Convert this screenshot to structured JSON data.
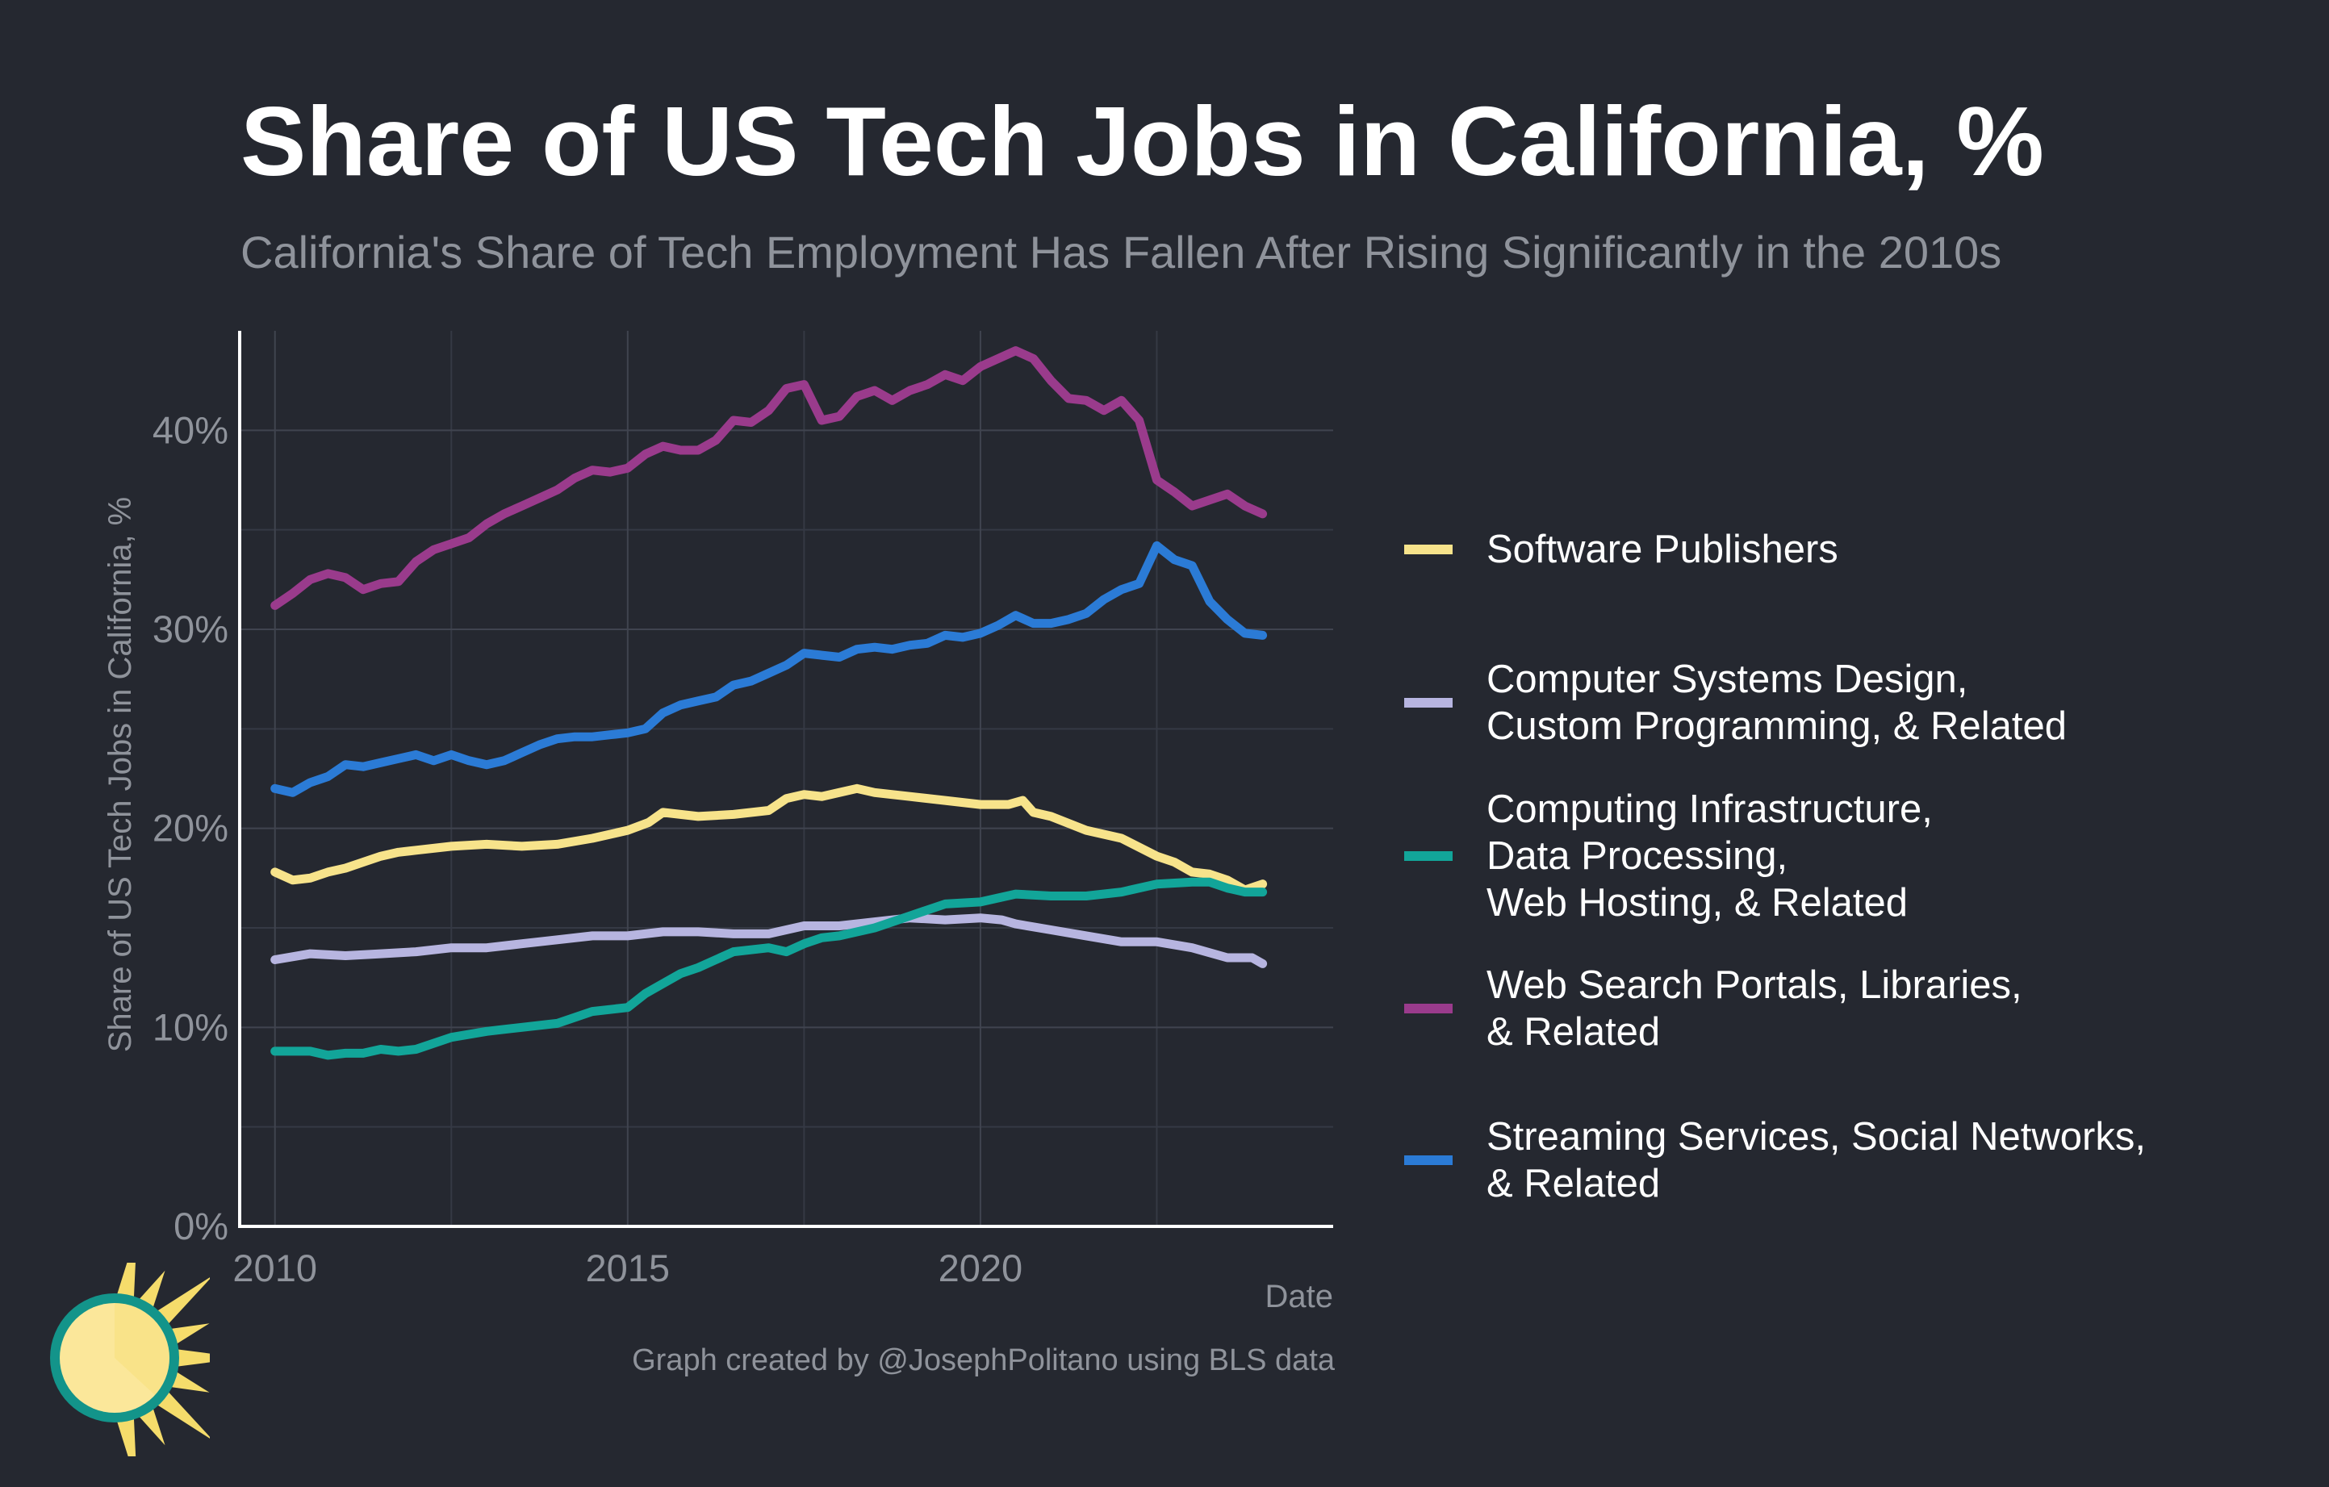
{
  "header": {
    "title": "Share of US Tech Jobs in California, %",
    "subtitle": "California's Share of Tech Employment Has Fallen After Rising Significantly in the 2010s"
  },
  "footer": {
    "caption": "Graph created by @JosephPolitano using BLS data"
  },
  "chart_data": {
    "type": "line",
    "title": "Share of US Tech Jobs in California, %",
    "subtitle": "California's Share of Tech Employment Has Fallen After Rising Significantly in the 2010s",
    "xlabel": "Date",
    "ylabel": "Share of US Tech Jobs in California, %",
    "xlim": [
      2009.5,
      2025.0
    ],
    "ylim": [
      0,
      45
    ],
    "x_ticks": [
      2010,
      2015,
      2020
    ],
    "x_tick_labels": [
      "2010",
      "2015",
      "2020"
    ],
    "y_ticks": [
      0,
      10,
      20,
      30,
      40
    ],
    "y_tick_labels": [
      "0%",
      "10%",
      "20%",
      "30%",
      "40%"
    ],
    "grid": true,
    "legend_position": "right",
    "series": [
      {
        "name": "Software Publishers",
        "color": "#f7e38b",
        "x": [
          2010.0,
          2010.25,
          2010.5,
          2010.75,
          2011.0,
          2011.25,
          2011.5,
          2011.75,
          2012.0,
          2012.5,
          2013.0,
          2013.5,
          2014.0,
          2014.5,
          2015.0,
          2015.3,
          2015.5,
          2016.0,
          2016.5,
          2017.0,
          2017.25,
          2017.5,
          2017.75,
          2018.0,
          2018.25,
          2018.5,
          2019.0,
          2019.5,
          2020.0,
          2020.4,
          2020.6,
          2020.75,
          2021.0,
          2021.5,
          2022.0,
          2022.5,
          2022.75,
          2023.0,
          2023.25,
          2023.5,
          2023.75,
          2024.0
        ],
        "y": [
          17.8,
          17.4,
          17.5,
          17.8,
          18.0,
          18.3,
          18.6,
          18.8,
          18.9,
          19.1,
          19.2,
          19.1,
          19.2,
          19.5,
          19.9,
          20.3,
          20.8,
          20.6,
          20.7,
          20.9,
          21.5,
          21.7,
          21.6,
          21.8,
          22.0,
          21.8,
          21.6,
          21.4,
          21.2,
          21.2,
          21.4,
          20.8,
          20.6,
          19.9,
          19.5,
          18.6,
          18.3,
          17.8,
          17.7,
          17.4,
          16.9,
          17.2
        ]
      },
      {
        "name": "Computer Systems Design, Custom Programming, & Related",
        "color": "#b7b5e0",
        "x": [
          2010.0,
          2010.5,
          2011.0,
          2011.5,
          2012.0,
          2012.5,
          2013.0,
          2013.5,
          2014.0,
          2014.5,
          2015.0,
          2015.5,
          2016.0,
          2016.5,
          2017.0,
          2017.5,
          2018.0,
          2018.5,
          2019.0,
          2019.5,
          2020.0,
          2020.3,
          2020.5,
          2021.0,
          2021.5,
          2022.0,
          2022.5,
          2023.0,
          2023.5,
          2023.85,
          2024.0
        ],
        "y": [
          13.4,
          13.7,
          13.6,
          13.7,
          13.8,
          14.0,
          14.0,
          14.2,
          14.4,
          14.6,
          14.6,
          14.8,
          14.8,
          14.7,
          14.7,
          15.1,
          15.1,
          15.3,
          15.5,
          15.4,
          15.5,
          15.4,
          15.2,
          14.9,
          14.6,
          14.3,
          14.3,
          14.0,
          13.5,
          13.5,
          13.2
        ]
      },
      {
        "name": "Computing Infrastructure, Data Processing, Web Hosting, & Related",
        "color": "#12a599",
        "x": [
          2010.0,
          2010.25,
          2010.5,
          2010.75,
          2011.0,
          2011.25,
          2011.5,
          2011.75,
          2012.0,
          2012.5,
          2013.0,
          2013.5,
          2014.0,
          2014.5,
          2015.0,
          2015.25,
          2015.5,
          2015.75,
          2016.0,
          2016.5,
          2017.0,
          2017.25,
          2017.5,
          2017.75,
          2018.0,
          2018.5,
          2019.0,
          2019.5,
          2020.0,
          2020.5,
          2021.0,
          2021.5,
          2022.0,
          2022.5,
          2023.0,
          2023.25,
          2023.5,
          2023.75,
          2024.0
        ],
        "y": [
          8.8,
          8.8,
          8.8,
          8.6,
          8.7,
          8.7,
          8.9,
          8.8,
          8.9,
          9.5,
          9.8,
          10.0,
          10.2,
          10.8,
          11.0,
          11.7,
          12.2,
          12.7,
          13.0,
          13.8,
          14.0,
          13.8,
          14.2,
          14.5,
          14.6,
          15.0,
          15.6,
          16.2,
          16.3,
          16.7,
          16.6,
          16.6,
          16.8,
          17.2,
          17.3,
          17.3,
          17.0,
          16.8,
          16.8
        ]
      },
      {
        "name": "Web Search Portals, Libraries, & Related",
        "color": "#9a3b8c",
        "x": [
          2010.0,
          2010.25,
          2010.5,
          2010.75,
          2011.0,
          2011.25,
          2011.5,
          2011.75,
          2012.0,
          2012.25,
          2012.5,
          2012.75,
          2013.0,
          2013.25,
          2013.5,
          2013.75,
          2014.0,
          2014.25,
          2014.5,
          2014.75,
          2015.0,
          2015.25,
          2015.5,
          2015.75,
          2016.0,
          2016.25,
          2016.5,
          2016.75,
          2017.0,
          2017.25,
          2017.5,
          2017.75,
          2018.0,
          2018.25,
          2018.5,
          2018.75,
          2019.0,
          2019.25,
          2019.5,
          2019.75,
          2020.0,
          2020.25,
          2020.5,
          2020.75,
          2021.0,
          2021.25,
          2021.5,
          2021.75,
          2022.0,
          2022.25,
          2022.5,
          2022.75,
          2023.0,
          2023.25,
          2023.5,
          2023.75,
          2024.0
        ],
        "y": [
          31.2,
          31.8,
          32.5,
          32.8,
          32.6,
          32.0,
          32.3,
          32.4,
          33.4,
          34.0,
          34.3,
          34.6,
          35.3,
          35.8,
          36.2,
          36.6,
          37.0,
          37.6,
          38.0,
          37.9,
          38.1,
          38.8,
          39.2,
          39.0,
          39.0,
          39.5,
          40.5,
          40.4,
          41.0,
          42.1,
          42.3,
          40.5,
          40.7,
          41.7,
          42.0,
          41.5,
          42.0,
          42.3,
          42.8,
          42.5,
          43.2,
          43.6,
          44.0,
          43.6,
          42.5,
          41.6,
          41.5,
          41.0,
          41.5,
          40.5,
          37.5,
          36.9,
          36.2,
          36.5,
          36.8,
          36.2,
          35.8
        ]
      },
      {
        "name": "Streaming Services, Social Networks, & Related",
        "color": "#2b7bd6",
        "x": [
          2010.0,
          2010.25,
          2010.5,
          2010.75,
          2011.0,
          2011.25,
          2011.5,
          2011.75,
          2012.0,
          2012.25,
          2012.5,
          2012.75,
          2013.0,
          2013.25,
          2013.5,
          2013.75,
          2014.0,
          2014.25,
          2014.5,
          2014.75,
          2015.0,
          2015.25,
          2015.5,
          2015.75,
          2016.0,
          2016.25,
          2016.5,
          2016.75,
          2017.0,
          2017.25,
          2017.5,
          2017.75,
          2018.0,
          2018.25,
          2018.5,
          2018.75,
          2019.0,
          2019.25,
          2019.5,
          2019.75,
          2020.0,
          2020.25,
          2020.5,
          2020.75,
          2021.0,
          2021.25,
          2021.5,
          2021.75,
          2022.0,
          2022.25,
          2022.5,
          2022.75,
          2023.0,
          2023.25,
          2023.5,
          2023.75,
          2024.0
        ],
        "y": [
          22.0,
          21.8,
          22.3,
          22.6,
          23.2,
          23.1,
          23.3,
          23.5,
          23.7,
          23.4,
          23.7,
          23.4,
          23.2,
          23.4,
          23.8,
          24.2,
          24.5,
          24.6,
          24.6,
          24.7,
          24.8,
          25.0,
          25.8,
          26.2,
          26.4,
          26.6,
          27.2,
          27.4,
          27.8,
          28.2,
          28.8,
          28.7,
          28.6,
          29.0,
          29.1,
          29.0,
          29.2,
          29.3,
          29.7,
          29.6,
          29.8,
          30.2,
          30.7,
          30.3,
          30.3,
          30.5,
          30.8,
          31.5,
          32.0,
          32.3,
          34.2,
          33.5,
          33.2,
          31.4,
          30.5,
          29.8,
          29.7
        ]
      }
    ]
  },
  "legend": {
    "items": [
      {
        "label": "Software Publishers",
        "color": "#f7e38b"
      },
      {
        "label": "Computer Systems Design,\nCustom Programming, & Related",
        "color": "#b7b5e0"
      },
      {
        "label": "Computing Infrastructure,\nData Processing,\nWeb Hosting, & Related",
        "color": "#12a599"
      },
      {
        "label": "Web Search Portals, Libraries,\n& Related",
        "color": "#9a3b8c"
      },
      {
        "label": "Streaming Services, Social Networks,\n& Related",
        "color": "#2b7bd6"
      }
    ]
  },
  "logo": {
    "icon": "sun-icon",
    "colors": {
      "rays": "#f5dc6b",
      "disc": "#fbe79a",
      "ring": "#13948a"
    }
  }
}
